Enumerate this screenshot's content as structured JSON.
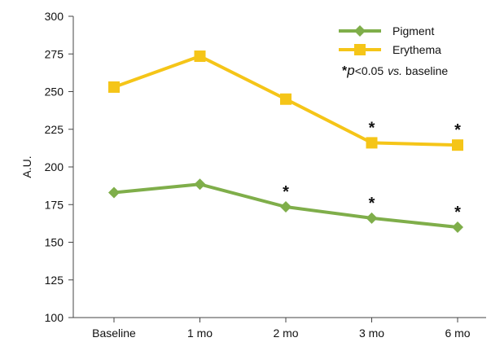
{
  "chart_data": {
    "type": "line",
    "categories": [
      "Baseline",
      "1 mo",
      "2 mo",
      "3 mo",
      "6 mo"
    ],
    "series": [
      {
        "name": "Pigment",
        "values": [
          183,
          188.5,
          173.5,
          166,
          160
        ],
        "color": "#7fae4a",
        "marker": "diamond"
      },
      {
        "name": "Erythema",
        "values": [
          253,
          273.5,
          245,
          216,
          214.5
        ],
        "color": "#f5c518",
        "marker": "square"
      }
    ],
    "ylabel": "A.U.",
    "xlabel": "",
    "ylim": [
      100,
      300
    ],
    "yticks": [
      "100",
      "125",
      "150",
      "175",
      "200",
      "225",
      "250",
      "275",
      "300"
    ],
    "grid": false,
    "legend": "top-right",
    "significance": {
      "Pigment": [
        false,
        false,
        true,
        true,
        true
      ],
      "Erythema": [
        false,
        false,
        false,
        true,
        true
      ]
    },
    "annotation": {
      "star": "*",
      "p": "p",
      "threshold": "<0.05",
      "vs": "vs.",
      "reference": "baseline"
    }
  }
}
